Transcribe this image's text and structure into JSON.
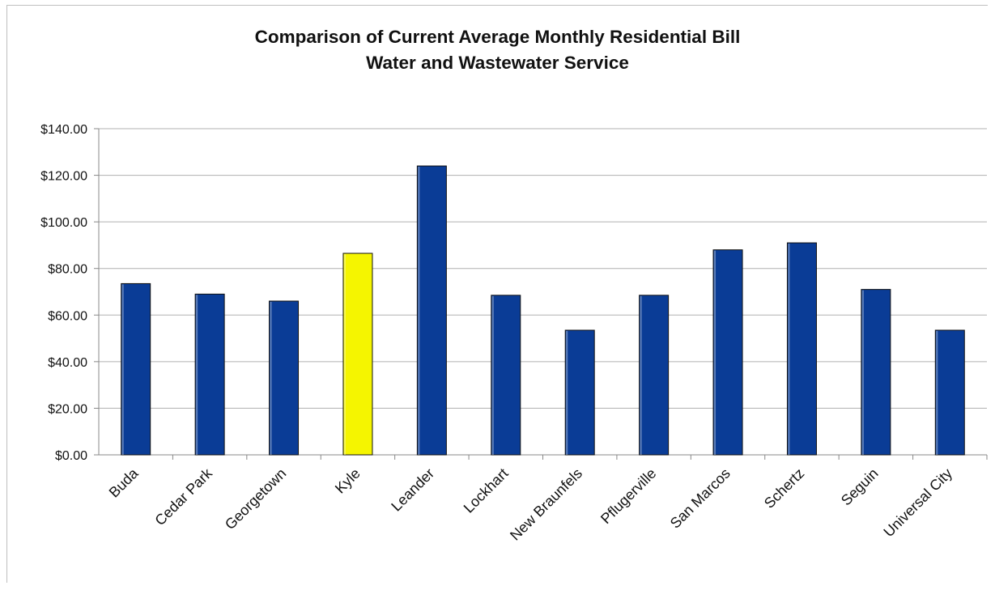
{
  "chart_data": {
    "type": "bar",
    "title": "Comparison of Current Average Monthly Residential Bill",
    "subtitle": "Water and Wastewater Service",
    "categories": [
      "Buda",
      "Cedar Park",
      "Georgetown",
      "Kyle",
      "Leander",
      "Lockhart",
      "New Braunfels",
      "Pflugerville",
      "San Marcos",
      "Schertz",
      "Seguin",
      "Universal City"
    ],
    "values": [
      73.5,
      69.0,
      66.0,
      86.5,
      124.0,
      68.5,
      53.5,
      68.5,
      88.0,
      91.0,
      71.0,
      53.5
    ],
    "highlight": "Kyle",
    "ylim": [
      0,
      140
    ],
    "yticks": [
      0,
      20,
      40,
      60,
      80,
      100,
      120,
      140
    ],
    "ytick_labels": [
      "$0.00",
      "$20.00",
      "$40.00",
      "$60.00",
      "$80.00",
      "$100.00",
      "$120.00",
      "$140.00"
    ],
    "xlabel": "",
    "ylabel": "",
    "grid": true,
    "colors": {
      "bar": "#0a3c96",
      "highlight": "#f5f500",
      "grid": "#b0b0b0",
      "axis": "#888888"
    }
  }
}
